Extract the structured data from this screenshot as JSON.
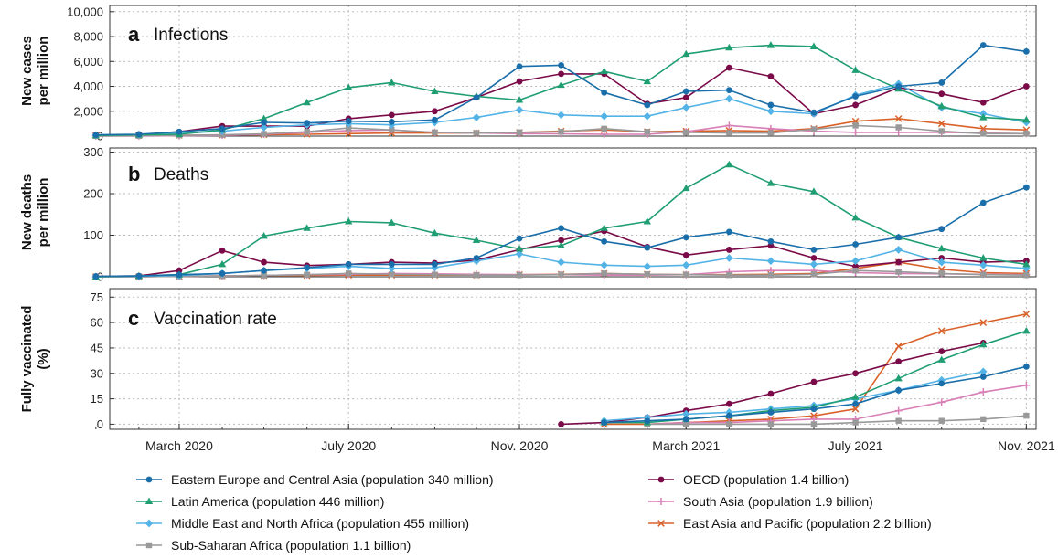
{
  "x_dates": [
    "2020-01-01",
    "2020-02-01",
    "2020-03-01",
    "2020-04-01",
    "2020-05-01",
    "2020-06-01",
    "2020-07-01",
    "2020-08-01",
    "2020-09-01",
    "2020-10-01",
    "2020-11-01",
    "2020-12-01",
    "2021-01-01",
    "2021-02-01",
    "2021-03-01",
    "2021-04-01",
    "2021-05-01",
    "2021-06-01",
    "2021-07-01",
    "2021-08-01",
    "2021-09-01",
    "2021-10-01",
    "2021-11-01"
  ],
  "x_ticks": [
    {
      "date": "2020-03-01",
      "label": "March 2020"
    },
    {
      "date": "2020-07-01",
      "label": "July 2020"
    },
    {
      "date": "2020-11-01",
      "label": "Nov. 2020"
    },
    {
      "date": "2021-03-01",
      "label": "March 2021"
    },
    {
      "date": "2021-07-01",
      "label": "July 2021"
    },
    {
      "date": "2021-11-01",
      "label": "Nov. 2021"
    }
  ],
  "chart_data": [
    {
      "panel": "a",
      "type": "line",
      "title": "Infections",
      "ylabel": "New cases per million",
      "ylabel_lines": [
        "New cases",
        "per million"
      ],
      "ylim": [
        0,
        10500
      ],
      "yticks": [
        0,
        2000,
        4000,
        6000,
        8000,
        10000
      ],
      "ytick_labels": [
        "0",
        "2,000",
        "4,000",
        "6,000",
        "8,000",
        "10,000"
      ],
      "series": [
        {
          "name": "Eastern Europe and Central Asia (population 340 million)",
          "values": [
            100,
            150,
            350,
            600,
            1100,
            1050,
            1200,
            1150,
            1300,
            3100,
            5600,
            5700,
            3500,
            2500,
            3600,
            3700,
            2500,
            1900,
            3200,
            4000,
            4300,
            7300,
            6800
          ]
        },
        {
          "name": "Latin America (population 446 million)",
          "values": [
            50,
            100,
            150,
            500,
            1400,
            2700,
            3900,
            4300,
            3600,
            3200,
            2900,
            4100,
            5200,
            4400,
            6600,
            7100,
            7300,
            7200,
            5300,
            3800,
            2400,
            1500,
            1300
          ]
        },
        {
          "name": "Middle East and North Africa (population 455 million)",
          "values": [
            80,
            120,
            220,
            400,
            700,
            900,
            1000,
            900,
            1100,
            1500,
            2100,
            1700,
            1600,
            1600,
            2300,
            3000,
            2000,
            1800,
            3300,
            4200,
            2300,
            1800,
            1100
          ]
        },
        {
          "name": "Sub-Saharan Africa (population 1.1 billion)",
          "values": [
            10,
            20,
            60,
            100,
            180,
            350,
            650,
            500,
            300,
            250,
            300,
            350,
            600,
            350,
            300,
            250,
            250,
            550,
            850,
            700,
            400,
            200,
            200
          ]
        },
        {
          "name": "OECD (population 1.4 billion)",
          "values": [
            50,
            100,
            350,
            800,
            800,
            800,
            1400,
            1700,
            2000,
            3100,
            4400,
            5000,
            5000,
            2600,
            3100,
            5500,
            4800,
            1800,
            2500,
            3900,
            3400,
            2700,
            4000
          ]
        },
        {
          "name": "South Asia (population 1.9 billion)",
          "values": [
            5,
            10,
            30,
            60,
            150,
            300,
            450,
            500,
            300,
            250,
            200,
            180,
            150,
            150,
            350,
            850,
            600,
            400,
            300,
            300,
            300,
            250,
            200
          ]
        },
        {
          "name": "East Asia and Pacific (population 2.2 billion)",
          "values": [
            50,
            60,
            70,
            80,
            120,
            150,
            200,
            250,
            250,
            250,
            300,
            400,
            500,
            350,
            400,
            450,
            400,
            600,
            1200,
            1400,
            1000,
            600,
            500
          ]
        }
      ]
    },
    {
      "panel": "b",
      "type": "line",
      "title": "Deaths",
      "ylabel": "New deaths per million",
      "ylabel_lines": [
        "New deaths",
        "per million"
      ],
      "ylim": [
        0,
        310
      ],
      "yticks": [
        0,
        100,
        200,
        300
      ],
      "ytick_labels": [
        "0",
        "100",
        "200",
        "300"
      ],
      "series": [
        {
          "name": "Eastern Europe and Central Asia (population 340 million)",
          "values": [
            1,
            2,
            5,
            8,
            15,
            22,
            30,
            30,
            30,
            45,
            92,
            117,
            85,
            70,
            95,
            108,
            85,
            65,
            78,
            95,
            115,
            178,
            215
          ]
        },
        {
          "name": "Latin America (population 446 million)",
          "values": [
            0,
            2,
            5,
            30,
            98,
            117,
            133,
            130,
            105,
            88,
            67,
            75,
            117,
            133,
            213,
            270,
            225,
            205,
            142,
            95,
            68,
            45,
            30
          ]
        },
        {
          "name": "Middle East and North Africa (population 455 million)",
          "values": [
            0,
            1,
            3,
            8,
            15,
            20,
            25,
            20,
            22,
            38,
            55,
            35,
            28,
            25,
            28,
            45,
            38,
            30,
            38,
            65,
            35,
            28,
            20
          ]
        },
        {
          "name": "Sub-Saharan Africa (population 1.1 billion)",
          "values": [
            0,
            0,
            1,
            2,
            3,
            5,
            8,
            6,
            5,
            4,
            4,
            5,
            8,
            6,
            5,
            4,
            4,
            6,
            15,
            12,
            8,
            5,
            4
          ]
        },
        {
          "name": "OECD (population 1.4 billion)",
          "values": [
            1,
            2,
            15,
            63,
            35,
            27,
            30,
            35,
            33,
            40,
            65,
            88,
            110,
            72,
            52,
            65,
            75,
            45,
            25,
            35,
            45,
            35,
            38
          ]
        },
        {
          "name": "South Asia (population 1.9 billion)",
          "values": [
            0,
            0,
            1,
            2,
            3,
            5,
            6,
            8,
            7,
            6,
            5,
            5,
            4,
            4,
            5,
            12,
            15,
            15,
            10,
            8,
            7,
            6,
            5
          ]
        },
        {
          "name": "East Asia and Pacific (population 2.2 billion)",
          "values": [
            0,
            0,
            1,
            2,
            3,
            3,
            4,
            4,
            4,
            4,
            5,
            6,
            8,
            6,
            5,
            5,
            6,
            8,
            20,
            35,
            18,
            10,
            8
          ]
        }
      ]
    },
    {
      "panel": "c",
      "type": "line",
      "title": "Vaccination rate",
      "ylabel": "Fully vaccinated (%)",
      "ylabel_lines": [
        "Fully vaccinated",
        "(%)"
      ],
      "ylim": [
        -3,
        80
      ],
      "yticks": [
        0,
        15,
        30,
        45,
        60,
        75
      ],
      "ytick_labels": [
        "0",
        "15",
        "30",
        "45",
        "60",
        "75"
      ],
      "series": [
        {
          "name": "Eastern Europe and Central Asia (population 340 million)",
          "start_index": 12,
          "values": [
            1,
            2,
            3,
            5,
            7,
            9,
            12,
            20,
            24,
            28,
            34
          ]
        },
        {
          "name": "Latin America (population 446 million)",
          "start_index": 12,
          "values": [
            1,
            1,
            3,
            5,
            8,
            10,
            16,
            27,
            38,
            47,
            55
          ]
        },
        {
          "name": "Middle East and North Africa (population 455 million)",
          "start_index": 12,
          "values": [
            2,
            4,
            6,
            7,
            9,
            11,
            15,
            20,
            26,
            31
          ]
        },
        {
          "name": "Sub-Saharan Africa (population 1.1 billion)",
          "start_index": 13,
          "values": [
            0,
            0,
            0,
            0,
            0,
            1,
            2,
            2,
            3,
            5
          ]
        },
        {
          "name": "OECD (population 1.4 billion)",
          "start_index": 11,
          "values": [
            0,
            1,
            4,
            8,
            12,
            18,
            25,
            30,
            37,
            43,
            48
          ]
        },
        {
          "name": "South Asia (population 1.9 billion)",
          "start_index": 13,
          "values": [
            0,
            1,
            1,
            2,
            3,
            3,
            8,
            13,
            19,
            23
          ]
        },
        {
          "name": "East Asia and Pacific (population 2.2 billion)",
          "start_index": 12,
          "values": [
            0,
            0,
            1,
            2,
            3,
            5,
            9,
            46,
            55,
            60,
            65
          ]
        }
      ]
    }
  ],
  "series_style": [
    {
      "color": "#1a6faa",
      "marker": "circle"
    },
    {
      "color": "#1f9e72",
      "marker": "triangle"
    },
    {
      "color": "#53b3e6",
      "marker": "diamond"
    },
    {
      "color": "#999999",
      "marker": "square"
    },
    {
      "color": "#7a0a48",
      "marker": "circle"
    },
    {
      "color": "#d97fb7",
      "marker": "plus"
    },
    {
      "color": "#d9622a",
      "marker": "x"
    }
  ],
  "legend_columns": [
    [
      0,
      1,
      2,
      3
    ],
    [
      4,
      5,
      6
    ]
  ]
}
